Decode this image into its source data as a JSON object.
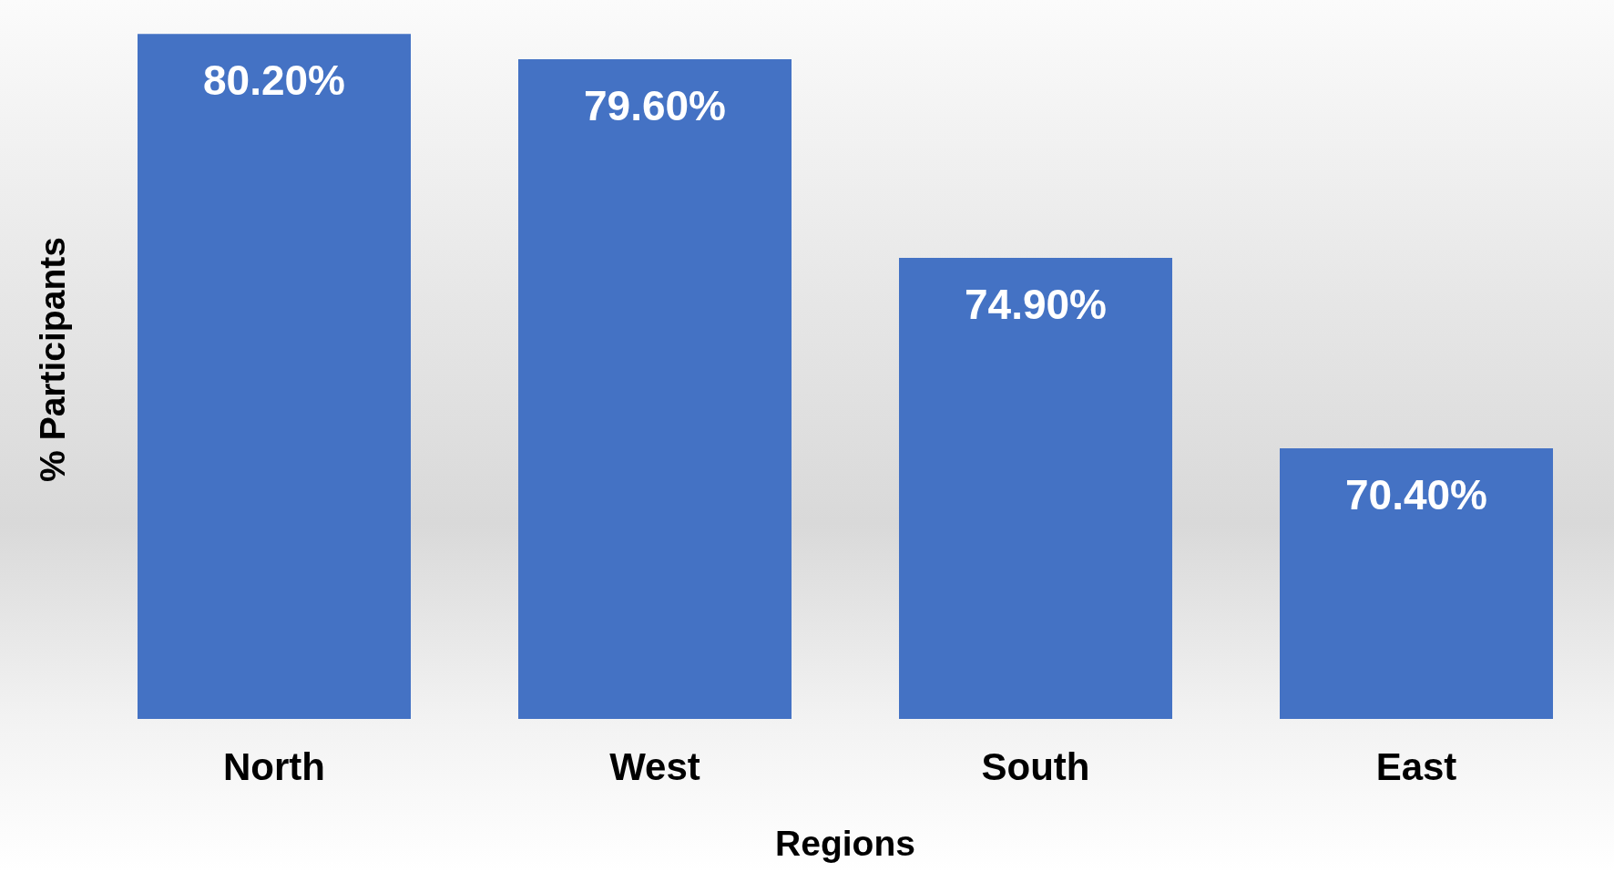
{
  "chart_data": {
    "type": "bar",
    "xlabel": "Regions",
    "ylabel": "% Participants",
    "categories": [
      "North",
      "West",
      "South",
      "East"
    ],
    "values": [
      80.2,
      79.6,
      74.9,
      70.4
    ],
    "value_labels": [
      "80.20%",
      "79.60%",
      "74.90%",
      "70.40%"
    ],
    "color": "#4472c4",
    "ylim": [
      64,
      81
    ],
    "tick_labels": "x"
  }
}
